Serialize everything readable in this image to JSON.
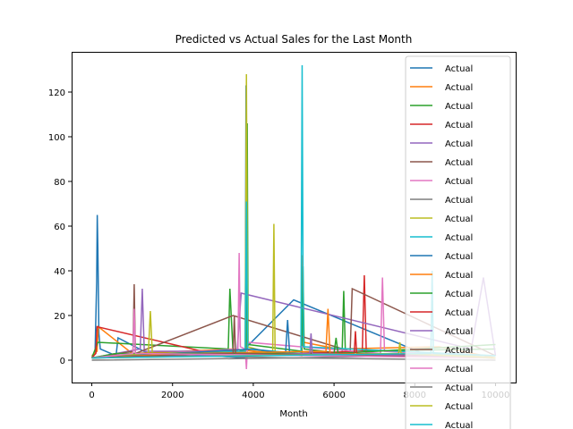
{
  "chart_data": {
    "type": "line",
    "title": "Predicted vs Actual Sales for the Last Month",
    "xlabel": "Month",
    "ylabel": "",
    "xlim": [
      -500,
      10500
    ],
    "ylim": [
      -10,
      138
    ],
    "xticks": [
      0,
      2000,
      4000,
      6000,
      8000,
      10000
    ],
    "xtick_labels": [
      "0",
      "2000",
      "4000",
      "6000",
      "8000",
      "10000"
    ],
    "yticks": [
      0,
      20,
      40,
      60,
      80,
      100,
      120
    ],
    "ytick_labels": [
      "0",
      "20",
      "40",
      "60",
      "80",
      "100",
      "120"
    ],
    "grid": false,
    "legend_position": "right",
    "series": [
      {
        "name": "Actual",
        "color": "#1f77b4",
        "x": [
          0,
          80,
          120,
          135,
          150,
          175,
          210,
          600,
          650,
          1500,
          2200,
          3800,
          3820,
          3840,
          5000,
          8200,
          10000
        ],
        "y": [
          1,
          3,
          35,
          65,
          50,
          12,
          5,
          2,
          10,
          2,
          3,
          1,
          123,
          6,
          27,
          3,
          1
        ]
      },
      {
        "name": "Actual",
        "color": "#ff7f0e",
        "x": [
          0,
          130,
          160,
          1000,
          3500,
          5200,
          5220,
          5250,
          6100,
          8600,
          10000
        ],
        "y": [
          2,
          4,
          15,
          3,
          5,
          2,
          47,
          8,
          5,
          6,
          1
        ]
      },
      {
        "name": "Actual",
        "color": "#2ca02c",
        "x": [
          0,
          150,
          3380,
          3420,
          3500,
          3830,
          3850,
          3870,
          5200,
          5230,
          5260,
          6200,
          6240,
          6280,
          10000
        ],
        "y": [
          1,
          8,
          5,
          32,
          3,
          5,
          106,
          7,
          4,
          42,
          5,
          3,
          31,
          4,
          5
        ]
      },
      {
        "name": "Actual",
        "color": "#d62728",
        "x": [
          0,
          100,
          130,
          3200,
          6700,
          6750,
          6800,
          10000
        ],
        "y": [
          1,
          3,
          15,
          2,
          4,
          38,
          3,
          1
        ]
      },
      {
        "name": "Actual",
        "color": "#9467bd",
        "x": [
          0,
          1200,
          1250,
          1300,
          3600,
          3700,
          9400,
          9700,
          10000
        ],
        "y": [
          1,
          5,
          32,
          4,
          4,
          30,
          5,
          37,
          2
        ]
      },
      {
        "name": "Actual",
        "color": "#8c564b",
        "x": [
          0,
          1020,
          1050,
          1080,
          3500,
          6400,
          6450,
          10000
        ],
        "y": [
          1,
          4,
          34,
          3,
          20,
          4,
          32,
          2
        ]
      },
      {
        "name": "Actual",
        "color": "#e377c2",
        "x": [
          0,
          3620,
          3650,
          3680,
          3800,
          3830,
          3860,
          7150,
          7200,
          7250,
          10000
        ],
        "y": [
          1,
          5,
          48,
          6,
          5,
          -4,
          8,
          3,
          37,
          4,
          1
        ]
      },
      {
        "name": "Actual",
        "color": "#7f7f7f",
        "x": [
          0,
          2500,
          5000,
          7500,
          10000
        ],
        "y": [
          1,
          2,
          1,
          2,
          1
        ]
      },
      {
        "name": "Actual",
        "color": "#bcbd22",
        "x": [
          0,
          1400,
          1450,
          1500,
          3800,
          3830,
          3860,
          4480,
          4510,
          4540,
          10000
        ],
        "y": [
          1,
          3,
          22,
          3,
          4,
          128,
          6,
          3,
          61,
          3,
          2
        ]
      },
      {
        "name": "Actual",
        "color": "#17becf",
        "x": [
          0,
          3800,
          3830,
          3860,
          5180,
          5210,
          5240,
          10000
        ],
        "y": [
          1,
          4,
          71,
          5,
          3,
          132,
          6,
          2
        ]
      },
      {
        "name": "Actual",
        "color": "#1f77b4",
        "x": [
          0,
          4000,
          4800,
          4850,
          4900,
          10000
        ],
        "y": [
          1,
          5,
          3,
          18,
          3,
          1
        ]
      },
      {
        "name": "Actual",
        "color": "#ff7f0e",
        "x": [
          0,
          2300,
          5800,
          5850,
          5900,
          10000
        ],
        "y": [
          1,
          3,
          4,
          23,
          3,
          1
        ]
      },
      {
        "name": "Actual",
        "color": "#2ca02c",
        "x": [
          0,
          600,
          6000,
          6050,
          6100,
          10000
        ],
        "y": [
          1,
          3,
          3,
          10,
          3,
          7
        ]
      },
      {
        "name": "Actual",
        "color": "#d62728",
        "x": [
          0,
          6500,
          6530,
          6560,
          10000
        ],
        "y": [
          1,
          3,
          13,
          3,
          1
        ]
      },
      {
        "name": "Actual",
        "color": "#9467bd",
        "x": [
          0,
          5400,
          5430,
          5460,
          10000
        ],
        "y": [
          1,
          3,
          12,
          3,
          1
        ]
      },
      {
        "name": "Actual",
        "color": "#8c564b",
        "x": [
          0,
          3100,
          3500,
          3530,
          3560,
          10000
        ],
        "y": [
          1,
          3,
          3,
          20,
          3,
          1
        ]
      },
      {
        "name": "Actual",
        "color": "#e377c2",
        "x": [
          0,
          1020,
          1050,
          1080,
          10000
        ],
        "y": [
          1,
          3,
          23,
          3,
          1
        ]
      },
      {
        "name": "Actual",
        "color": "#7f7f7f",
        "x": [
          0,
          5000,
          10000
        ],
        "y": [
          0,
          1,
          0
        ]
      },
      {
        "name": "Actual",
        "color": "#bcbd22",
        "x": [
          0,
          7600,
          7630,
          7660,
          10000
        ],
        "y": [
          1,
          3,
          8,
          3,
          1
        ]
      },
      {
        "name": "Actual",
        "color": "#17becf",
        "x": [
          0,
          8400,
          8430,
          8460,
          10000
        ],
        "y": [
          1,
          3,
          40,
          3,
          2
        ]
      }
    ]
  }
}
